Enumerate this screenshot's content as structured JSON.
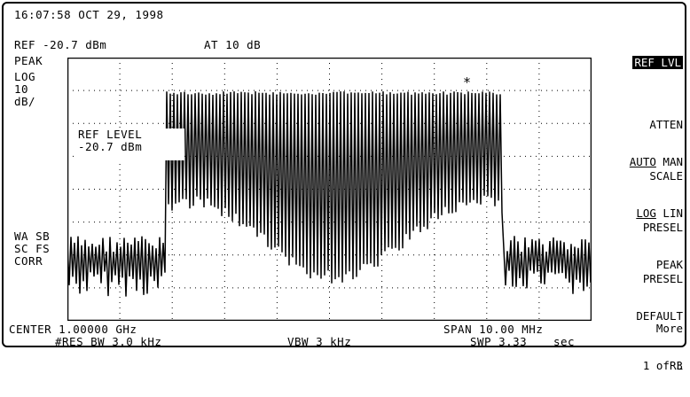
{
  "header": {
    "timestamp": "16:07:58 OCT 29, 1998"
  },
  "status": {
    "ref": "REF -20.7 dBm",
    "atten": "AT 10 dB",
    "detector": "PEAK",
    "scale_mode": "LOG",
    "scale_value": "10",
    "scale_unit": "dB/",
    "marker_symbol": "*",
    "flags": [
      "WA SB",
      "SC FS",
      "CORR"
    ]
  },
  "annotation": {
    "line1": "REF LEVEL",
    "line2": "-20.7 dBm"
  },
  "footer": {
    "center": "CENTER 1.00000 GHz",
    "span": "SPAN 10.00 MHz",
    "res_bw": "#RES BW 3.0 kHz",
    "vbw": "VBW 3 kHz",
    "swp": "SWP 3.33",
    "swp_unit": "sec"
  },
  "softkeys": {
    "ref_lvl": "REF LVL",
    "atten_title": "ATTEN",
    "atten_auto": "AUTO",
    "atten_man": " MAN",
    "scale_title": "SCALE",
    "scale_log": "LOG",
    "scale_lin": " LIN",
    "presel_peak_1": "PRESEL",
    "presel_peak_2": "PEAK",
    "presel_def_1": "PRESEL",
    "presel_def_2": "DEFAULT",
    "more_1": "More",
    "more_2": "1 of 3",
    "rl": "RL"
  }
}
